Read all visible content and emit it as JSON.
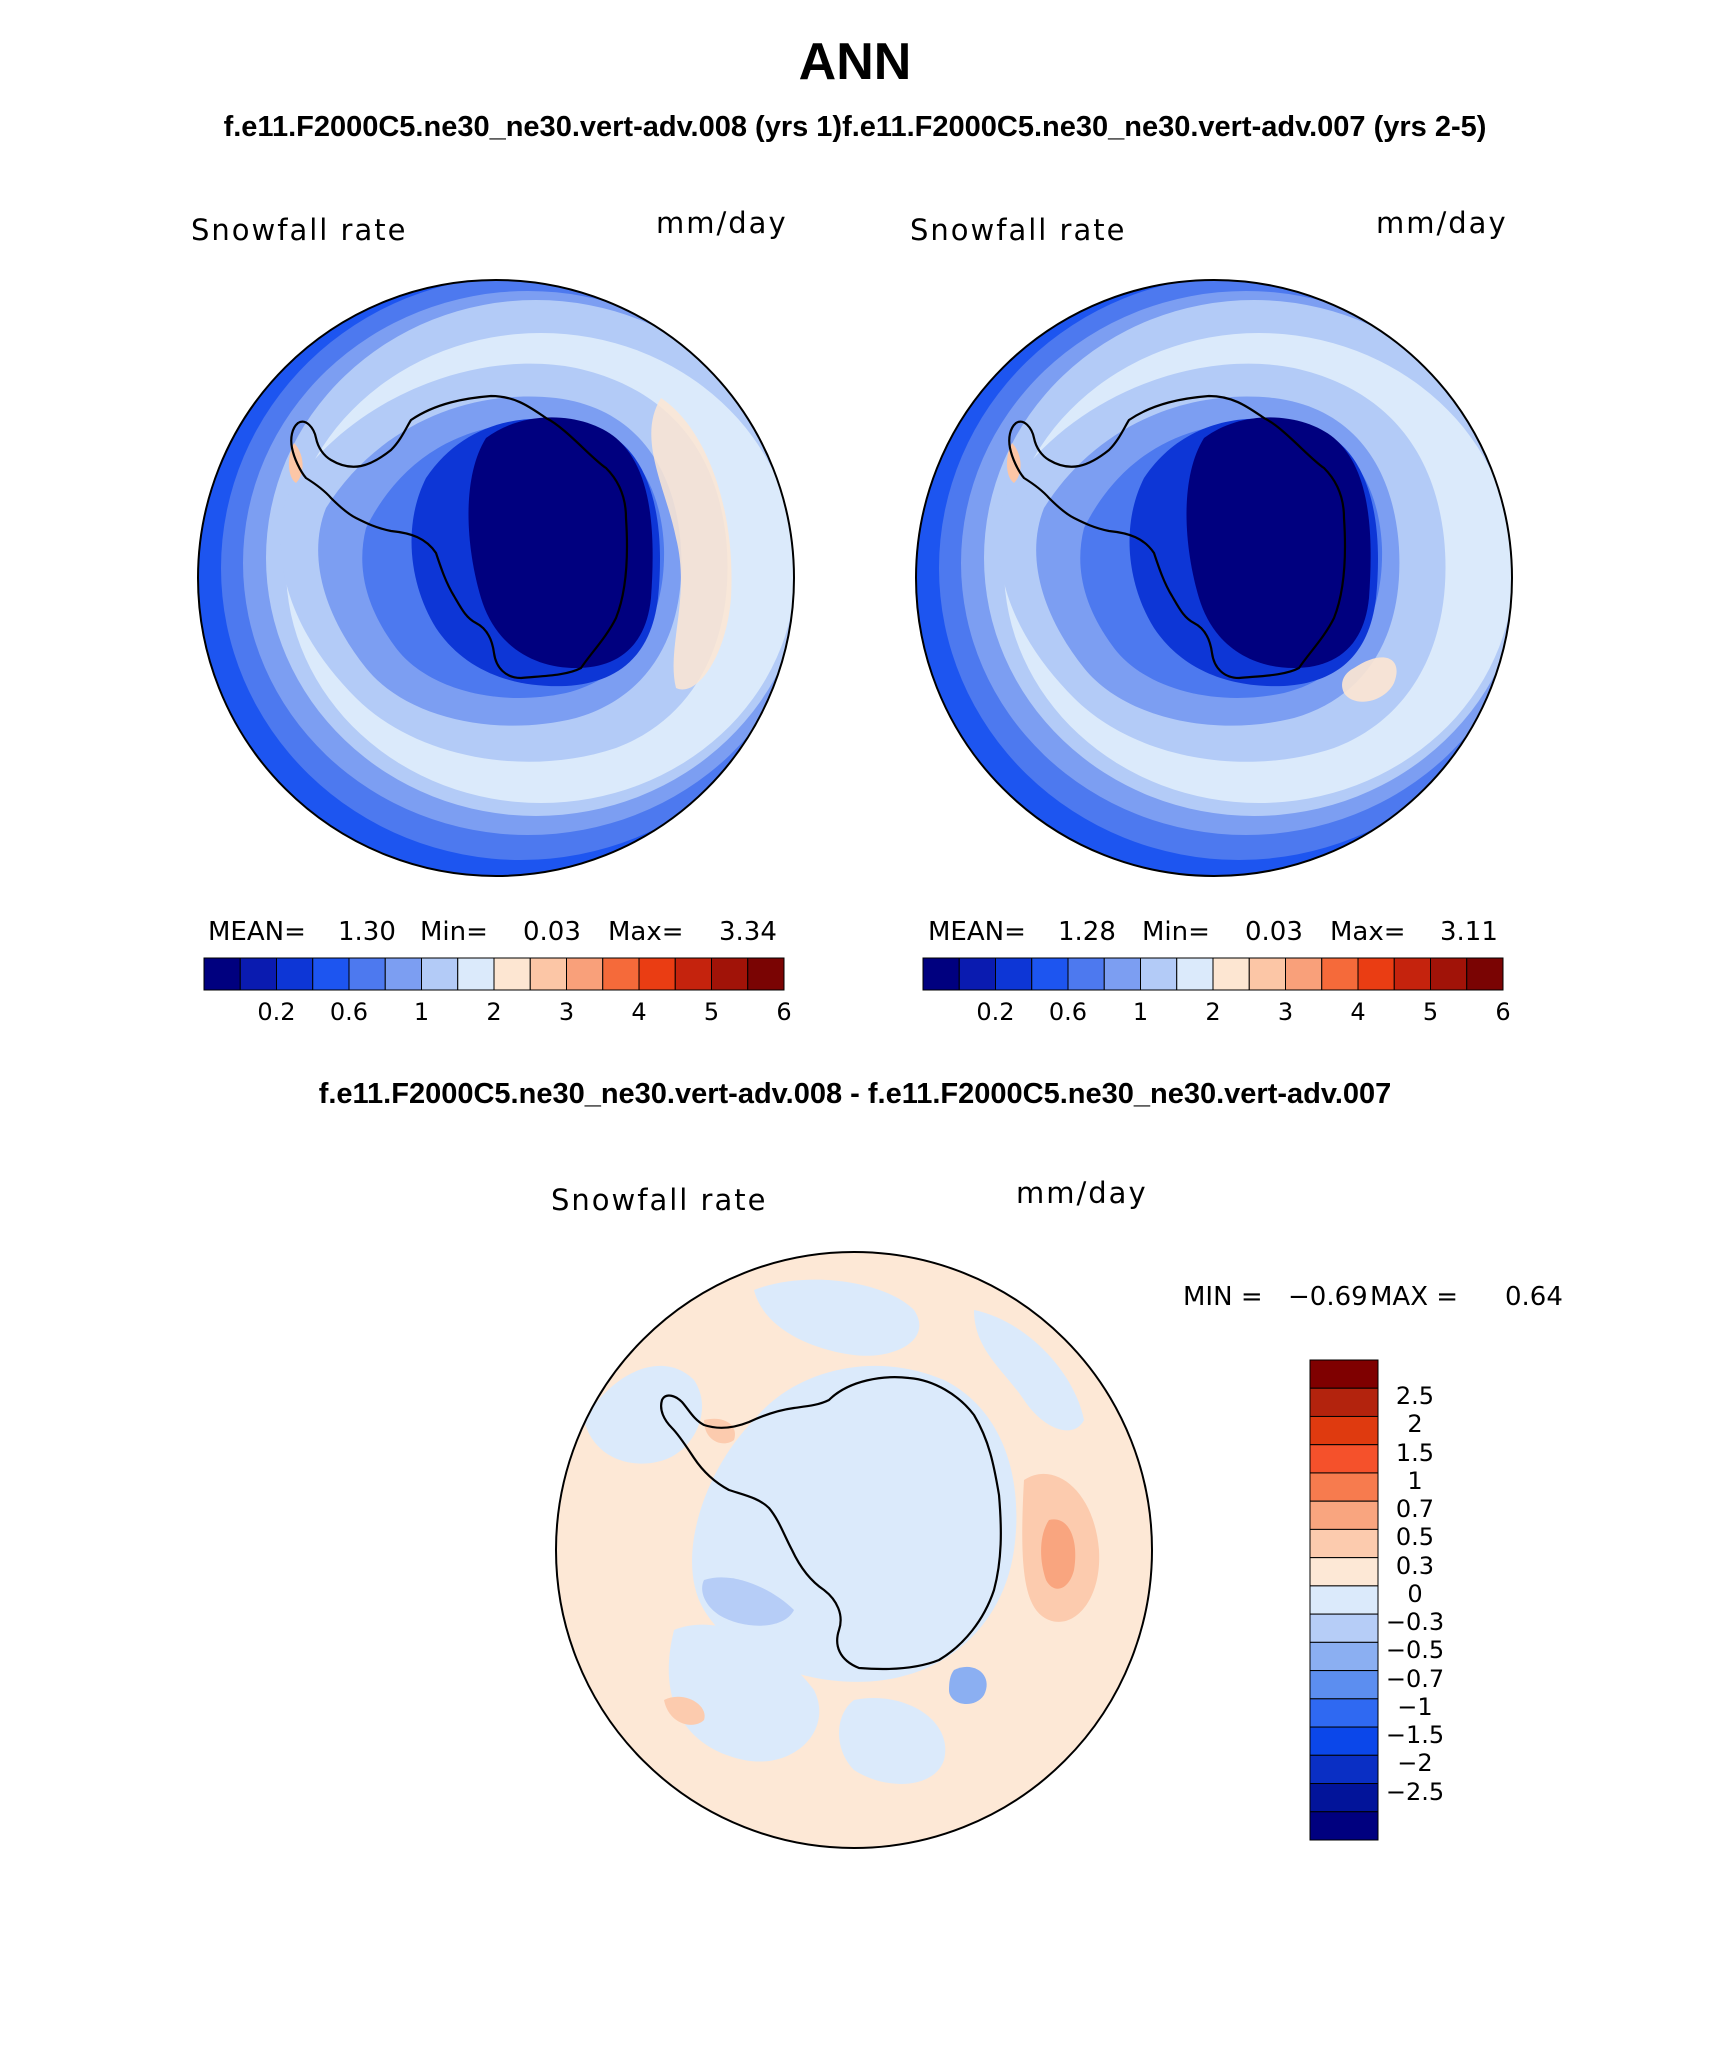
{
  "header": {
    "title": "ANN",
    "subtitle": "f.e11.F2000C5.ne30_ne30.vert-adv.008 (yrs 1)f.e11.F2000C5.ne30_ne30.vert-adv.007 (yrs 2-5)"
  },
  "panels": [
    {
      "variable": "Snowfall rate",
      "units": "mm/day",
      "stats": {
        "mean_label": "MEAN=",
        "mean": "1.30",
        "min_label": "Min=",
        "min": "0.03",
        "max_label": "Max=",
        "max": "3.34"
      }
    },
    {
      "variable": "Snowfall rate",
      "units": "mm/day",
      "stats": {
        "mean_label": "MEAN=",
        "mean": "1.28",
        "min_label": "Min=",
        "min": "0.03",
        "max_label": "Max=",
        "max": "3.11"
      }
    }
  ],
  "difference": {
    "title": "f.e11.F2000C5.ne30_ne30.vert-adv.008 - f.e11.F2000C5.ne30_ne30.vert-adv.007",
    "variable": "Snowfall rate",
    "units": "mm/day",
    "min_label": "MIN =",
    "min": "−0.69",
    "max_label": "MAX =",
    "max": "0.64"
  },
  "colorbar_main": {
    "colors": [
      "#00007f",
      "#0a1bb0",
      "#0d36d6",
      "#1d55f0",
      "#4d79ef",
      "#7c9ef2",
      "#b3cbf7",
      "#dbeafb",
      "#fde6d2",
      "#fcc6a6",
      "#f9a07a",
      "#f56a3a",
      "#ea3d13",
      "#c5230d",
      "#a11308",
      "#7a0403"
    ],
    "tick_labels": [
      "0.2",
      "0.6",
      "1",
      "2",
      "3",
      "4",
      "5",
      "6"
    ]
  },
  "colorbar_diff": {
    "colors_top_to_bottom": [
      "#7f0000",
      "#b3230d",
      "#df3a0f",
      "#f5512b",
      "#f77b4e",
      "#f9a57f",
      "#fccbae",
      "#fde8d6",
      "#dbeafb",
      "#b6cdf7",
      "#8baff2",
      "#5c8ef0",
      "#2f69f2",
      "#0b47ea",
      "#0a2fc4",
      "#02149a",
      "#00007f"
    ],
    "tick_labels": [
      "2.5",
      "2",
      "1.5",
      "1",
      "0.7",
      "0.5",
      "0.3",
      "0",
      "−0.3",
      "−0.5",
      "−0.7",
      "−1",
      "−1.5",
      "−2",
      "−2.5"
    ]
  }
}
